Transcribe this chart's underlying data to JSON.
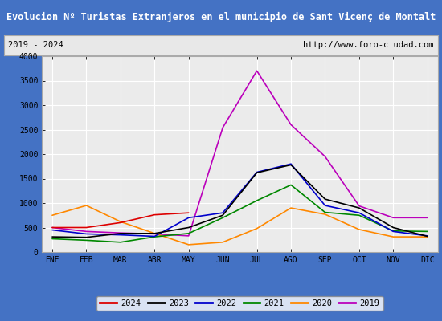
{
  "title": "Evolucion Nº Turistas Extranjeros en el municipio de Sant Vicenç de Montalt",
  "subtitle_left": "2019 - 2024",
  "subtitle_right": "http://www.foro-ciudad.com",
  "title_bg_color": "#4472c4",
  "title_text_color": "#ffffff",
  "months": [
    "ENE",
    "FEB",
    "MAR",
    "ABR",
    "MAY",
    "JUN",
    "JUL",
    "AGO",
    "SEP",
    "OCT",
    "NOV",
    "DIC"
  ],
  "ylim": [
    0,
    4000
  ],
  "yticks": [
    0,
    500,
    1000,
    1500,
    2000,
    2500,
    3000,
    3500,
    4000
  ],
  "series": {
    "2024": {
      "color": "#dd0000",
      "data": [
        500,
        500,
        600,
        760,
        800,
        null,
        null,
        null,
        null,
        null,
        null,
        null
      ]
    },
    "2023": {
      "color": "#000000",
      "data": [
        310,
        300,
        380,
        380,
        500,
        750,
        1620,
        1780,
        1080,
        900,
        500,
        320
      ]
    },
    "2022": {
      "color": "#0000cc",
      "data": [
        450,
        370,
        350,
        320,
        700,
        800,
        1630,
        1800,
        950,
        800,
        420,
        330
      ]
    },
    "2021": {
      "color": "#008800",
      "data": [
        270,
        240,
        200,
        310,
        380,
        700,
        1050,
        1370,
        810,
        750,
        430,
        420
      ]
    },
    "2020": {
      "color": "#ff8800",
      "data": [
        750,
        950,
        620,
        380,
        150,
        200,
        480,
        900,
        770,
        460,
        310,
        310
      ]
    },
    "2019": {
      "color": "#bb00bb",
      "data": [
        500,
        420,
        390,
        370,
        330,
        2540,
        3700,
        2600,
        1950,
        940,
        700,
        700
      ]
    }
  },
  "bg_color": "#e8e8e8",
  "plot_bg_color": "#ebebeb",
  "grid_color": "#ffffff",
  "border_color": "#4472c4",
  "legend_bg": "#ffffff"
}
